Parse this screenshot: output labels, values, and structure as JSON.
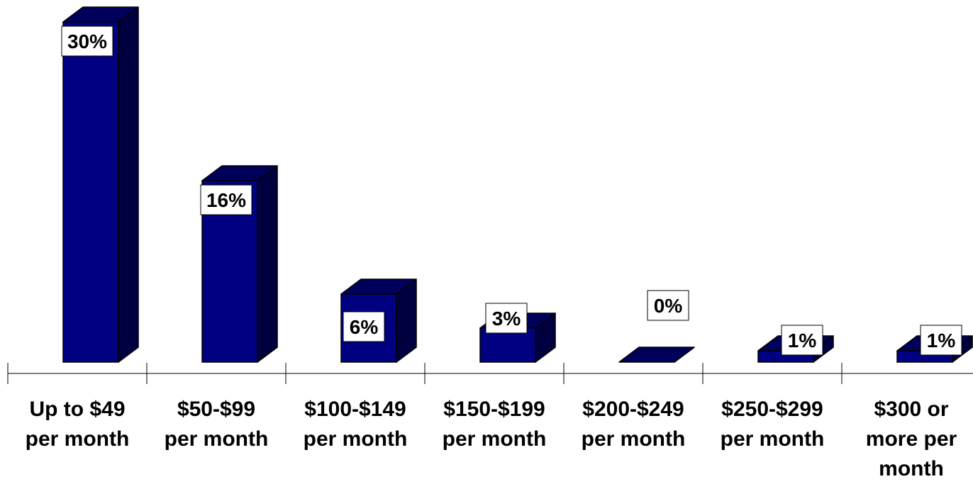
{
  "chart_data": {
    "type": "bar",
    "style": "3d-column",
    "categories": [
      [
        "Up to $49",
        "per month"
      ],
      [
        "$50-$99",
        "per month"
      ],
      [
        "$100-$149",
        "per month"
      ],
      [
        "$150-$199",
        "per month"
      ],
      [
        "$200-$249",
        "per month"
      ],
      [
        "$250-$299",
        "per month"
      ],
      [
        "$300 or",
        "more per",
        "month"
      ]
    ],
    "values": [
      30,
      16,
      6,
      3,
      0,
      1,
      1
    ],
    "data_labels": [
      "30%",
      "16%",
      "6%",
      "3%",
      "0%",
      "1%",
      "1%"
    ],
    "unit": "%",
    "ylim": [
      0,
      30
    ],
    "grid": false,
    "legend": "none",
    "colors": {
      "bar_front": "#000080",
      "bar_side": "#000040",
      "bar_top": "#00005a",
      "outline": "#000000",
      "axis": "#000000",
      "label_box": "#ffffff"
    }
  }
}
